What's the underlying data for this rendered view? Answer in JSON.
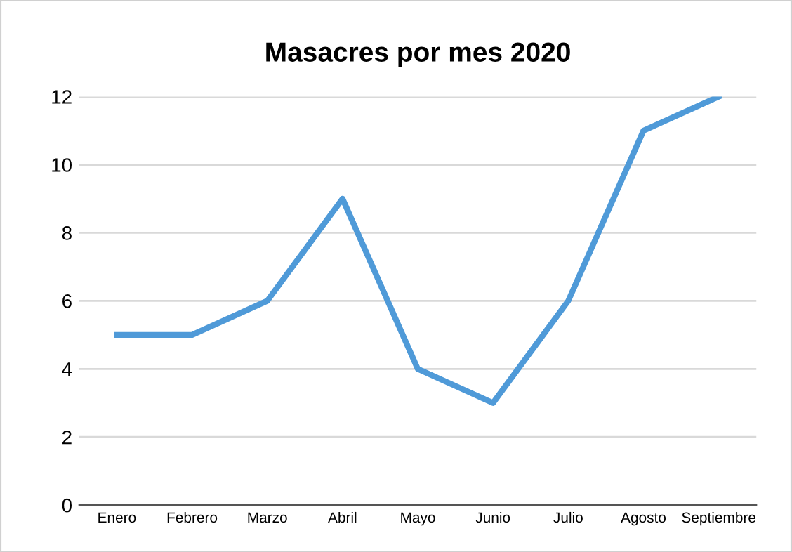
{
  "chart_data": {
    "type": "line",
    "title": "Masacres por mes 2020",
    "categories": [
      "Enero",
      "Febrero",
      "Marzo",
      "Abril",
      "Mayo",
      "Junio",
      "Julio",
      "Agosto",
      "Septiembre"
    ],
    "series": [
      {
        "color": "#4f9ad8",
        "values": [
          5,
          5,
          6,
          9,
          4,
          3,
          6,
          11,
          12
        ]
      }
    ],
    "ylim": [
      0,
      12
    ],
    "yticks": [
      0,
      2,
      4,
      6,
      8,
      10,
      12
    ],
    "grid": "y",
    "marker": "none",
    "line_style": "solid"
  }
}
